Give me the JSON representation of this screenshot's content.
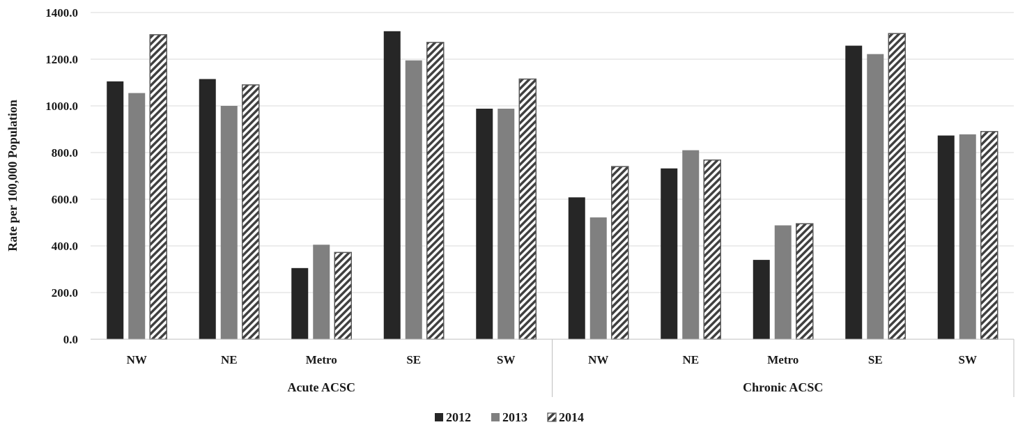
{
  "chart_data": {
    "type": "bar",
    "title": "",
    "xlabel": "",
    "ylabel": "Rate per 100,000 Population",
    "ylim": [
      0,
      1400
    ],
    "yticks": [
      "0.0",
      "200.0",
      "400.0",
      "600.0",
      "800.0",
      "1000.0",
      "1200.0",
      "1400.0"
    ],
    "grid": true,
    "legend_position": "bottom",
    "groups": [
      {
        "label": "Acute ACSC",
        "categories": [
          "NW",
          "NE",
          "Metro",
          "SE",
          "SW"
        ]
      },
      {
        "label": "Chronic ACSC",
        "categories": [
          "NW",
          "NE",
          "Metro",
          "SE",
          "SW"
        ]
      }
    ],
    "series": [
      {
        "name": "2012",
        "color": "#262626",
        "pattern": "solid",
        "values": [
          1105,
          1115,
          305,
          1320,
          988,
          608,
          732,
          340,
          1258,
          873
        ]
      },
      {
        "name": "2013",
        "color": "#808080",
        "pattern": "solid",
        "values": [
          1055,
          1000,
          405,
          1195,
          988,
          522,
          810,
          488,
          1222,
          878
        ]
      },
      {
        "name": "2014",
        "color": "#595959",
        "pattern": "diagonal-hatch",
        "values": [
          1305,
          1090,
          372,
          1272,
          1115,
          740,
          768,
          495,
          1310,
          890
        ]
      }
    ]
  }
}
